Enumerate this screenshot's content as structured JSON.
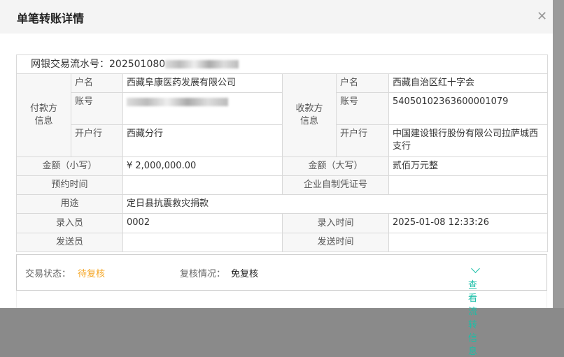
{
  "title": "单笔转账详情",
  "serial": {
    "label": "网银交易流水号：",
    "value_visible": "202501080"
  },
  "payer": {
    "group": "付款方信息",
    "name_label": "户名",
    "name": "西藏阜康医药发展有限公司",
    "account_label": "账号",
    "bank_label": "开户行",
    "bank": "西藏分行"
  },
  "payee": {
    "group": "收款方信息",
    "name_label": "户名",
    "name": "西藏自治区红十字会",
    "account_label": "账号",
    "account": "54050102363600001079",
    "bank_label": "开户行",
    "bank": "中国建设银行股份有限公司拉萨城西支行"
  },
  "amount_small_label": "金额（小写）",
  "amount_small": "¥ 2,000,000.00",
  "amount_big_label": "金额（大写）",
  "amount_big": "贰佰万元整",
  "scheduled_label": "预约时间",
  "scheduled": "",
  "voucher_label": "企业自制凭证号",
  "voucher": "",
  "purpose_label": "用途",
  "purpose": "定日县抗震救灾捐款",
  "entry_label": "录入员",
  "entry": "0002",
  "entry_time_label": "录入时间",
  "entry_time": "2025-01-08 12:33:26",
  "sender_label": "发送员",
  "sender": "",
  "send_time_label": "发送时间",
  "send_time": "",
  "status": {
    "label": "交易状态：",
    "value": "待复核",
    "color": "#f5a623",
    "review_label": "复核情况：",
    "review": "免复核",
    "link": "查看流转信息",
    "link_color": "#1bbfa8"
  }
}
